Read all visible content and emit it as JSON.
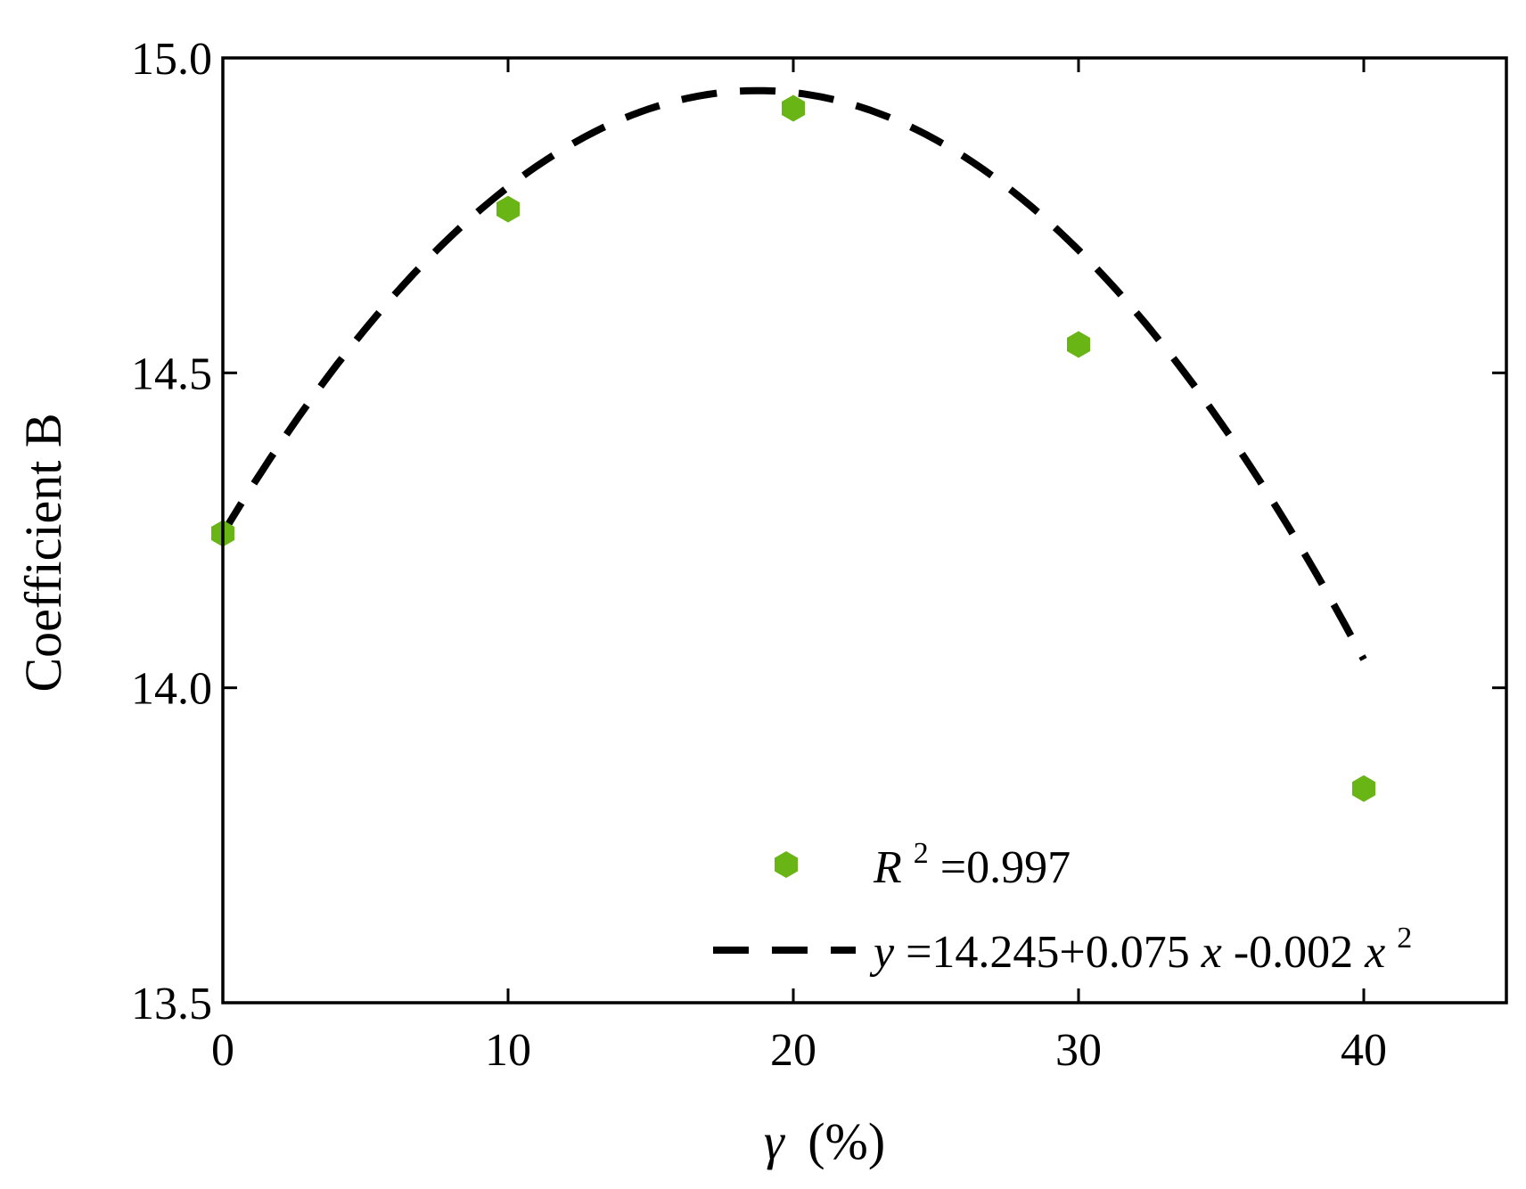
{
  "chart_data": {
    "type": "scatter",
    "xlabel": "γ (%)",
    "xlabel_parts": {
      "symbol": "γ",
      "unit": "(%)"
    },
    "ylabel": "Coefficient B",
    "xlim": [
      0,
      45
    ],
    "ylim": [
      13.5,
      15.0
    ],
    "x_ticks": [
      0,
      10,
      20,
      30,
      40
    ],
    "x_tick_labels": [
      "0",
      "10",
      "20",
      "30",
      "40"
    ],
    "y_ticks": [
      13.5,
      14.0,
      14.5,
      15.0
    ],
    "y_tick_labels": [
      "13.5",
      "14.0",
      "14.5",
      "15.0"
    ],
    "grid": false,
    "legend_position": "bottom-right",
    "series": [
      {
        "kind": "points",
        "marker": "hexagon",
        "color": "#6ab516",
        "x": [
          0,
          10,
          20,
          30,
          40
        ],
        "y": [
          14.245,
          14.76,
          14.92,
          14.545,
          13.84
        ],
        "legend": {
          "label": "R",
          "sup": "2",
          "suffix": "=0.997"
        }
      },
      {
        "kind": "fit",
        "style": "dashed",
        "color": "#000000",
        "x_range": [
          0,
          40
        ],
        "coefficients": [
          14.245,
          0.075,
          -0.002
        ],
        "legend": {
          "parts": [
            {
              "text": "y",
              "italic": true
            },
            {
              "text": "=14.245+0.075"
            },
            {
              "text": "x",
              "italic": true
            },
            {
              "text": "-0.002"
            },
            {
              "text": "x",
              "italic": true
            },
            {
              "text": "2",
              "sup": true
            }
          ]
        }
      }
    ]
  }
}
